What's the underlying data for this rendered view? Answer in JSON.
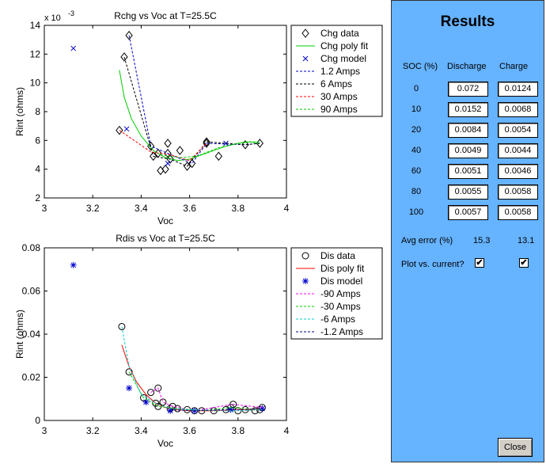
{
  "chart_data": [
    {
      "type": "line",
      "title": "Rchg vs Voc at T=25.5C",
      "xlabel": "Voc",
      "ylabel": "Rint (ohms)",
      "y_multiplier": "x 10",
      "y_exponent": "-3",
      "xlim": [
        3,
        4
      ],
      "ylim": [
        2,
        14
      ],
      "xticks": [
        "3",
        "3.2",
        "3.4",
        "3.6",
        "3.8",
        "4"
      ],
      "yticks": [
        "2",
        "4",
        "6",
        "8",
        "10",
        "12",
        "14"
      ],
      "grid": false,
      "legend_position": "right",
      "series": [
        {
          "name": "Chg data",
          "style": "diamond",
          "color": "#000000",
          "points": [
            [
              3.31,
              6.7
            ],
            [
              3.33,
              11.8
            ],
            [
              3.35,
              13.3
            ],
            [
              3.44,
              5.6
            ],
            [
              3.45,
              4.9
            ],
            [
              3.47,
              5.1
            ],
            [
              3.48,
              3.9
            ],
            [
              3.5,
              4.0
            ],
            [
              3.51,
              5.1
            ],
            [
              3.51,
              5.8
            ],
            [
              3.52,
              4.7
            ],
            [
              3.56,
              5.3
            ],
            [
              3.59,
              4.2
            ],
            [
              3.61,
              4.4
            ],
            [
              3.67,
              5.8
            ],
            [
              3.67,
              5.9
            ],
            [
              3.72,
              4.9
            ],
            [
              3.83,
              5.7
            ],
            [
              3.89,
              5.8
            ]
          ]
        },
        {
          "name": "Chg poly fit",
          "style": "line",
          "color": "#00cc00",
          "points": [
            [
              3.31,
              10.9
            ],
            [
              3.33,
              9.0
            ],
            [
              3.36,
              7.5
            ],
            [
              3.4,
              6.3
            ],
            [
              3.45,
              5.3
            ],
            [
              3.5,
              4.8
            ],
            [
              3.55,
              4.6
            ],
            [
              3.6,
              4.7
            ],
            [
              3.65,
              5.0
            ],
            [
              3.7,
              5.3
            ],
            [
              3.75,
              5.6
            ],
            [
              3.8,
              5.8
            ],
            [
              3.85,
              5.9
            ],
            [
              3.89,
              5.8
            ]
          ]
        },
        {
          "name": "Chg model",
          "style": "x",
          "color": "#0000cc",
          "points": [
            [
              3.12,
              12.4
            ],
            [
              3.34,
              6.8
            ],
            [
              3.51,
              4.4
            ],
            [
              3.75,
              5.8
            ]
          ]
        },
        {
          "name": "1.2 Amps",
          "style": "dashed",
          "color": "#0000cc",
          "points": [
            [
              3.35,
              13.3
            ],
            [
              3.44,
              5.6
            ],
            [
              3.51,
              5.1
            ],
            [
              3.61,
              4.4
            ],
            [
              3.67,
              5.8
            ],
            [
              3.83,
              5.7
            ],
            [
              3.89,
              5.8
            ]
          ]
        },
        {
          "name": "6 Amps",
          "style": "dashed",
          "color": "#000000",
          "points": [
            [
              3.33,
              11.8
            ],
            [
              3.45,
              4.9
            ],
            [
              3.52,
              4.7
            ],
            [
              3.59,
              4.2
            ],
            [
              3.67,
              5.9
            ],
            [
              3.83,
              5.7
            ],
            [
              3.89,
              5.8
            ]
          ]
        },
        {
          "name": "30 Amps",
          "style": "dashed",
          "color": "#ff0000",
          "points": [
            [
              3.31,
              6.7
            ],
            [
              3.44,
              5.2
            ],
            [
              3.52,
              5.0
            ],
            [
              3.6,
              4.6
            ],
            [
              3.67,
              5.8
            ]
          ]
        },
        {
          "name": "90 Amps",
          "style": "dashed",
          "color": "#00cc00",
          "points": [
            [
              3.48,
              5.0
            ],
            [
              3.56,
              4.8
            ],
            [
              3.63,
              4.9
            ],
            [
              3.72,
              5.5
            ],
            [
              3.83,
              5.9
            ],
            [
              3.89,
              5.9
            ]
          ]
        }
      ]
    },
    {
      "type": "line",
      "title": "Rdis vs Voc at T=25.5C",
      "xlabel": "Voc",
      "ylabel": "Rint (ohms)",
      "xlim": [
        3,
        4
      ],
      "ylim": [
        0,
        0.08
      ],
      "xticks": [
        "3",
        "3.2",
        "3.4",
        "3.6",
        "3.8",
        "4"
      ],
      "yticks": [
        "0",
        "0.02",
        "0.04",
        "0.06",
        "0.08"
      ],
      "grid": false,
      "legend_position": "right",
      "series": [
        {
          "name": "Dis data",
          "style": "circle",
          "color": "#000000",
          "points": [
            [
              3.32,
              0.0435
            ],
            [
              3.35,
              0.0225
            ],
            [
              3.41,
              0.0105
            ],
            [
              3.44,
              0.013
            ],
            [
              3.46,
              0.008
            ],
            [
              3.47,
              0.015
            ],
            [
              3.47,
              0.0065
            ],
            [
              3.49,
              0.0085
            ],
            [
              3.52,
              0.0055
            ],
            [
              3.53,
              0.0065
            ],
            [
              3.55,
              0.0055
            ],
            [
              3.59,
              0.005
            ],
            [
              3.62,
              0.0045
            ],
            [
              3.65,
              0.0045
            ],
            [
              3.7,
              0.0045
            ],
            [
              3.75,
              0.005
            ],
            [
              3.77,
              0.006
            ],
            [
              3.78,
              0.0075
            ],
            [
              3.8,
              0.0045
            ],
            [
              3.83,
              0.005
            ],
            [
              3.87,
              0.0045
            ],
            [
              3.89,
              0.005
            ],
            [
              3.9,
              0.006
            ]
          ]
        },
        {
          "name": "Dis poly fit",
          "style": "line",
          "color": "#ff0000",
          "points": [
            [
              3.32,
              0.035
            ],
            [
              3.35,
              0.025
            ],
            [
              3.38,
              0.018
            ],
            [
              3.42,
              0.012
            ],
            [
              3.46,
              0.008
            ],
            [
              3.5,
              0.006
            ],
            [
              3.55,
              0.005
            ],
            [
              3.6,
              0.0045
            ],
            [
              3.7,
              0.0045
            ],
            [
              3.8,
              0.005
            ],
            [
              3.9,
              0.0052
            ]
          ]
        },
        {
          "name": "Dis model",
          "style": "star",
          "color": "#0000cc",
          "points": [
            [
              3.12,
              0.072
            ],
            [
              3.35,
              0.015
            ],
            [
              3.42,
              0.0085
            ],
            [
              3.52,
              0.0045
            ],
            [
              3.62,
              0.0045
            ],
            [
              3.77,
              0.005
            ],
            [
              3.9,
              0.0055
            ]
          ]
        },
        {
          "name": "-90 Amps",
          "style": "dashed",
          "color": "#ff00ff",
          "points": [
            [
              3.44,
              0.013
            ],
            [
              3.47,
              0.015
            ],
            [
              3.49,
              0.0085
            ],
            [
              3.53,
              0.0065
            ],
            [
              3.62,
              0.0045
            ],
            [
              3.78,
              0.0075
            ],
            [
              3.9,
              0.006
            ]
          ]
        },
        {
          "name": "-30 Amps",
          "style": "dashed",
          "color": "#00cc00",
          "points": [
            [
              3.35,
              0.0225
            ],
            [
              3.41,
              0.0105
            ],
            [
              3.47,
              0.0065
            ],
            [
              3.55,
              0.0055
            ],
            [
              3.65,
              0.0045
            ],
            [
              3.77,
              0.006
            ],
            [
              3.89,
              0.005
            ]
          ]
        },
        {
          "name": "-6 Amps",
          "style": "dashed",
          "color": "#00cccc",
          "points": [
            [
              3.32,
              0.0435
            ],
            [
              3.35,
              0.025
            ],
            [
              3.4,
              0.012
            ],
            [
              3.46,
              0.008
            ],
            [
              3.52,
              0.0055
            ],
            [
              3.59,
              0.005
            ],
            [
              3.7,
              0.0045
            ],
            [
              3.8,
              0.0045
            ],
            [
              3.9,
              0.005
            ]
          ]
        },
        {
          "name": "-1.2 Amps",
          "style": "dashed",
          "color": "#000080",
          "points": [
            [
              3.52,
              0.005
            ],
            [
              3.62,
              0.0045
            ],
            [
              3.75,
              0.005
            ],
            [
              3.83,
              0.005
            ],
            [
              3.89,
              0.0055
            ]
          ]
        }
      ]
    }
  ],
  "results": {
    "title": "Results",
    "col_soc": "SOC (%)",
    "col_discharge": "Discharge",
    "col_charge": "Charge",
    "rows": [
      {
        "soc": "0",
        "discharge": "0.072",
        "charge": "0.0124"
      },
      {
        "soc": "10",
        "discharge": "0.0152",
        "charge": "0.0068"
      },
      {
        "soc": "20",
        "discharge": "0.0084",
        "charge": "0.0054"
      },
      {
        "soc": "40",
        "discharge": "0.0049",
        "charge": "0.0044"
      },
      {
        "soc": "60",
        "discharge": "0.0051",
        "charge": "0.0046"
      },
      {
        "soc": "80",
        "discharge": "0.0055",
        "charge": "0.0058"
      },
      {
        "soc": "100",
        "discharge": "0.0057",
        "charge": "0.0058"
      }
    ],
    "avg_error_label": "Avg error (%)",
    "avg_error_discharge": "15.3",
    "avg_error_charge": "13.1",
    "plot_vs_current_label": "Plot vs. current?",
    "plot_vs_current_discharge": true,
    "plot_vs_current_charge": true,
    "check_glyph": "✔",
    "close_label": "Close"
  }
}
